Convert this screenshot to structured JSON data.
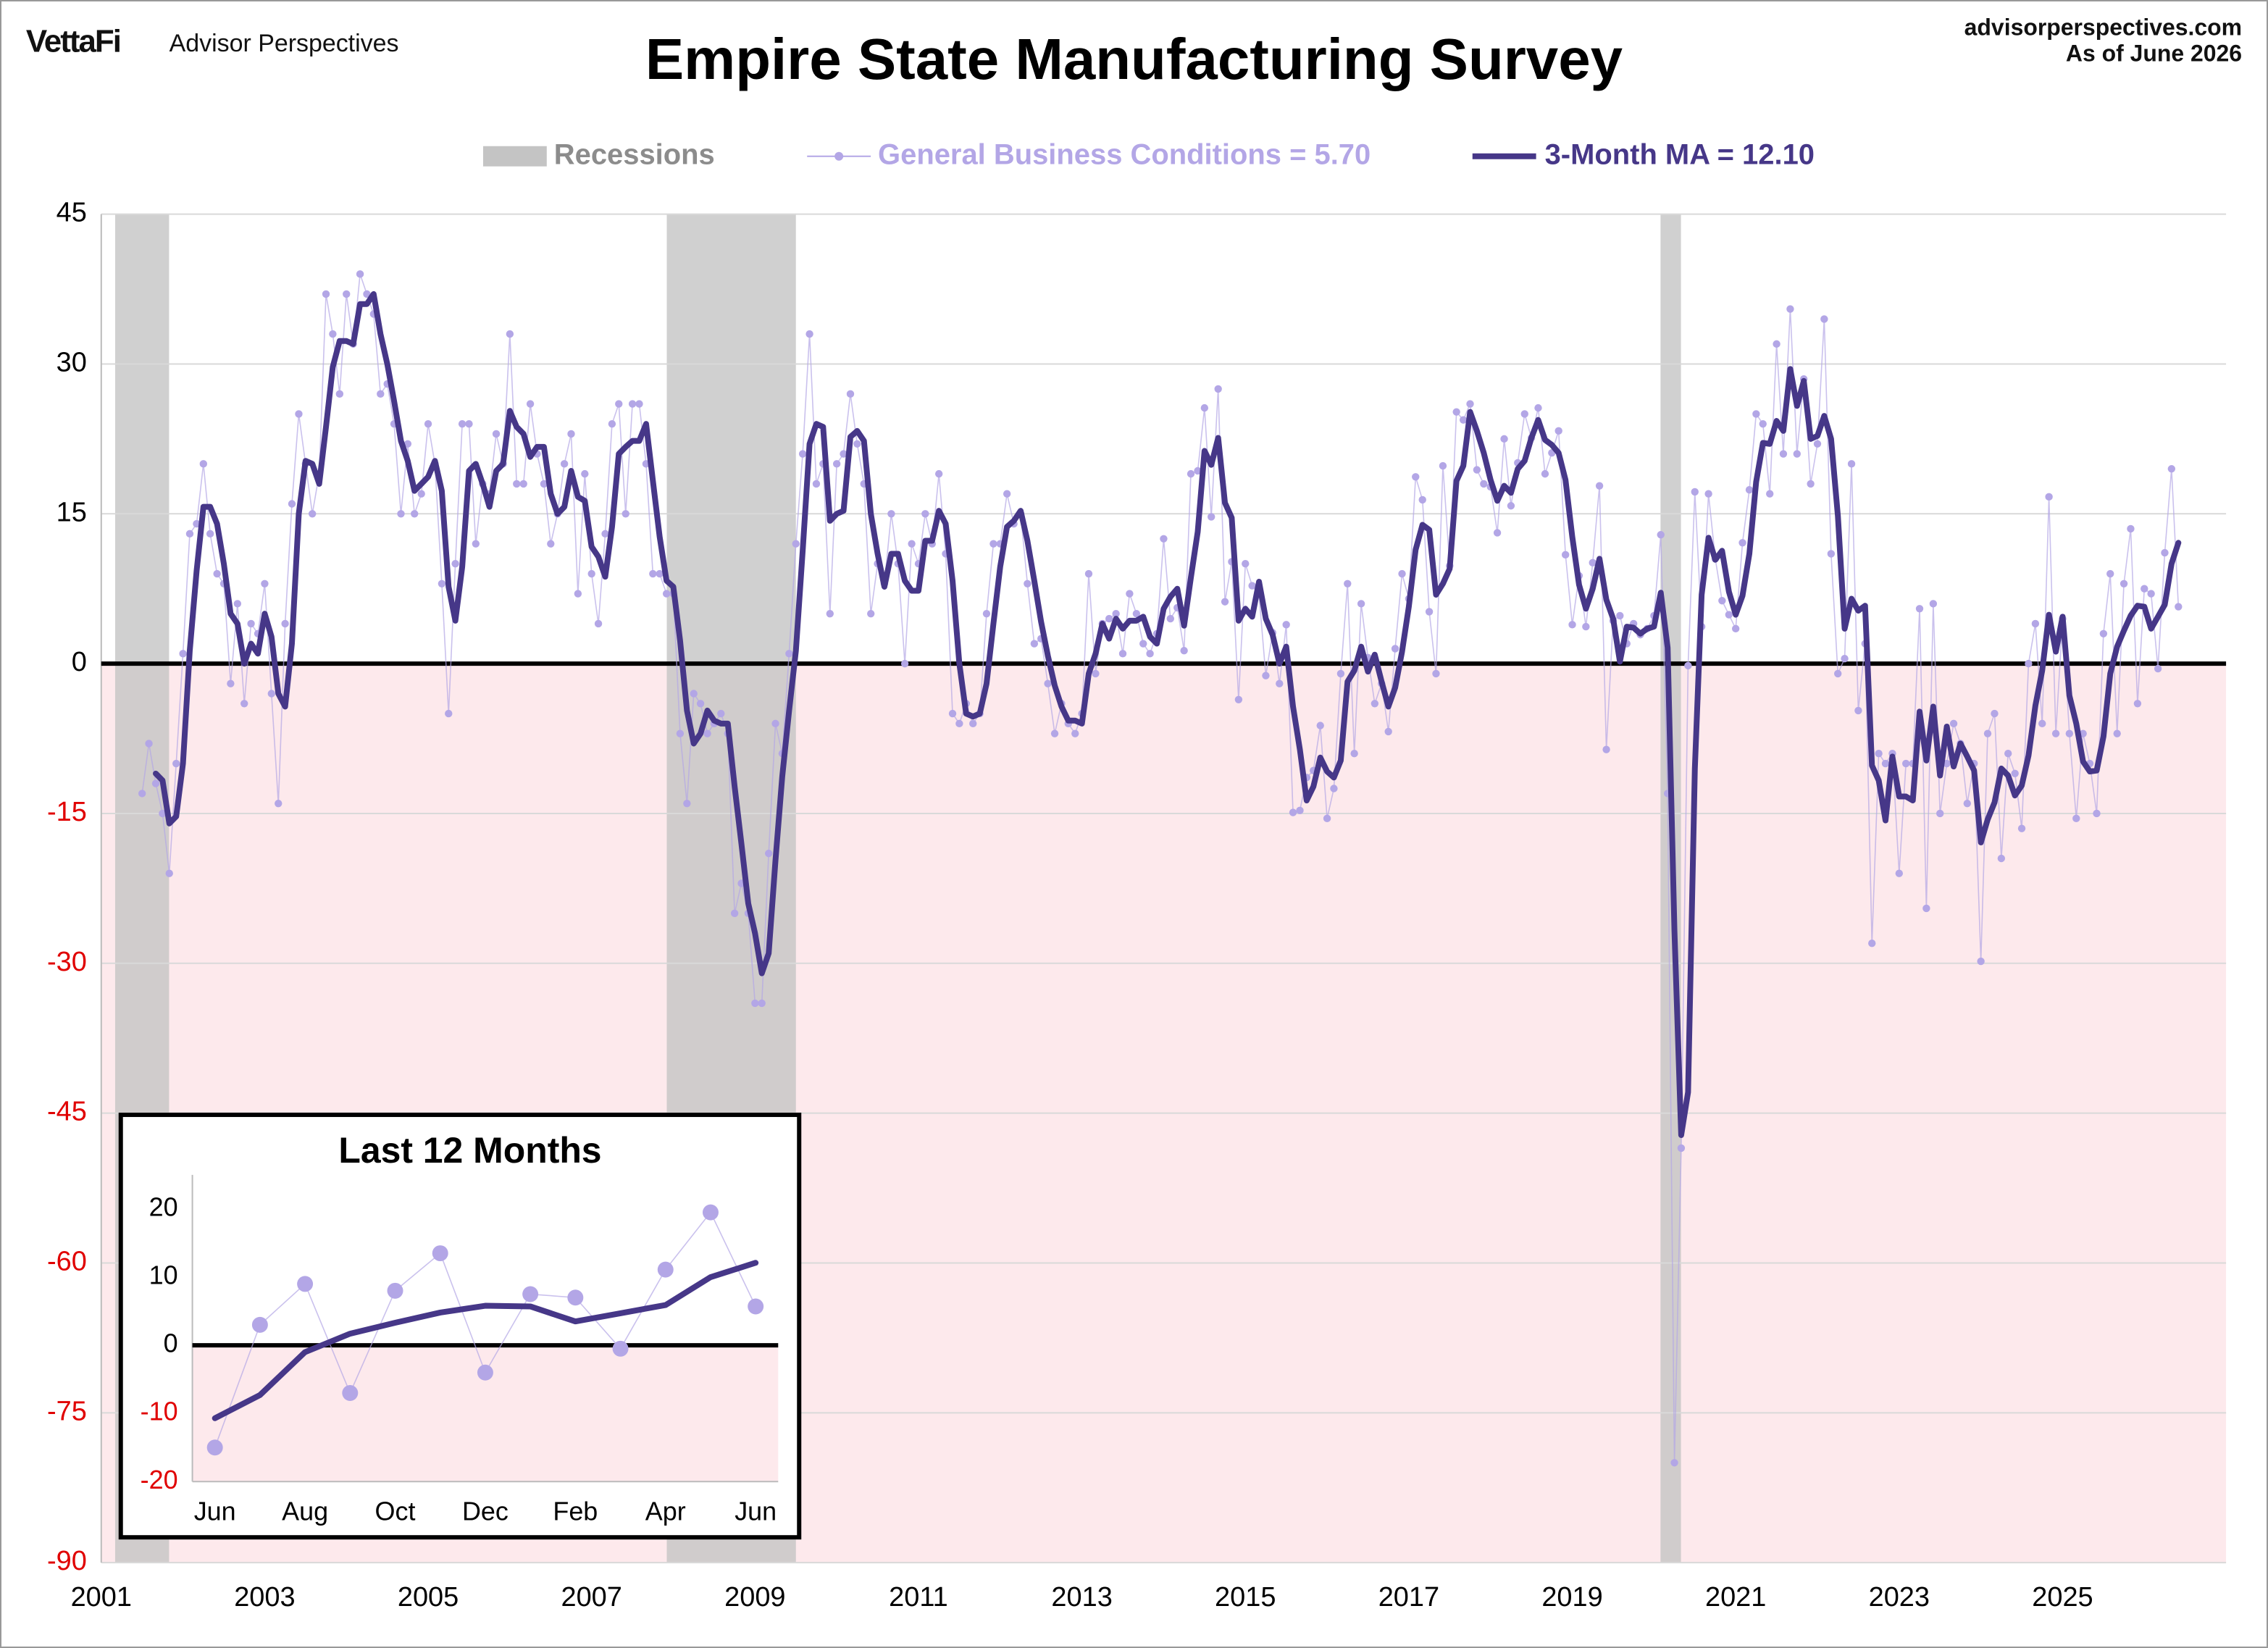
{
  "header": {
    "brand": "VettaFi",
    "brand_sub": "Advisor Perspectives",
    "site": "advisorperspectives.com",
    "date": "As of June 2026"
  },
  "chart_data": [
    {
      "type": "line",
      "title": "Empire State Manufacturing Survey",
      "legend": "top",
      "grid": true,
      "zero_line": true,
      "negative_fill": "#fde9ec",
      "negative_tick_color": "#e00000",
      "xlim": [
        2001,
        2027
      ],
      "xticks": [
        2001,
        2003,
        2005,
        2007,
        2009,
        2011,
        2013,
        2015,
        2017,
        2019,
        2021,
        2023,
        2025
      ],
      "ylim": [
        -90,
        45
      ],
      "yticks": [
        -90,
        -75,
        -60,
        -45,
        -30,
        -15,
        0,
        15,
        30,
        45
      ],
      "recessions": {
        "name": "Recessions",
        "color": "#c4c4c4",
        "periods": [
          [
            2001.17,
            2001.83
          ],
          [
            2007.92,
            2009.5
          ],
          [
            2020.08,
            2020.33
          ]
        ]
      },
      "x": [
        2001.5,
        2001.583,
        2001.667,
        2001.75,
        2001.833,
        2001.917,
        2002,
        2002.083,
        2002.167,
        2002.25,
        2002.333,
        2002.417,
        2002.5,
        2002.583,
        2002.667,
        2002.75,
        2002.833,
        2002.917,
        2003,
        2003.083,
        2003.167,
        2003.25,
        2003.333,
        2003.417,
        2003.5,
        2003.583,
        2003.667,
        2003.75,
        2003.833,
        2003.917,
        2004,
        2004.083,
        2004.167,
        2004.25,
        2004.333,
        2004.417,
        2004.5,
        2004.583,
        2004.667,
        2004.75,
        2004.833,
        2004.917,
        2005,
        2005.083,
        2005.167,
        2005.25,
        2005.333,
        2005.417,
        2005.5,
        2005.583,
        2005.667,
        2005.75,
        2005.833,
        2005.917,
        2006,
        2006.083,
        2006.167,
        2006.25,
        2006.333,
        2006.417,
        2006.5,
        2006.583,
        2006.667,
        2006.75,
        2006.833,
        2006.917,
        2007,
        2007.083,
        2007.167,
        2007.25,
        2007.333,
        2007.417,
        2007.5,
        2007.583,
        2007.667,
        2007.75,
        2007.833,
        2007.917,
        2008,
        2008.083,
        2008.167,
        2008.25,
        2008.333,
        2008.417,
        2008.5,
        2008.583,
        2008.667,
        2008.75,
        2008.833,
        2008.917,
        2009,
        2009.083,
        2009.167,
        2009.25,
        2009.333,
        2009.417,
        2009.5,
        2009.583,
        2009.667,
        2009.75,
        2009.833,
        2009.917,
        2010,
        2010.083,
        2010.167,
        2010.25,
        2010.333,
        2010.417,
        2010.5,
        2010.583,
        2010.667,
        2010.75,
        2010.833,
        2010.917,
        2011,
        2011.083,
        2011.167,
        2011.25,
        2011.333,
        2011.417,
        2011.5,
        2011.583,
        2011.667,
        2011.75,
        2011.833,
        2011.917,
        2012,
        2012.083,
        2012.167,
        2012.25,
        2012.333,
        2012.417,
        2012.5,
        2012.583,
        2012.667,
        2012.75,
        2012.833,
        2012.917,
        2013,
        2013.083,
        2013.167,
        2013.25,
        2013.333,
        2013.417,
        2013.5,
        2013.583,
        2013.667,
        2013.75,
        2013.833,
        2013.917,
        2014,
        2014.083,
        2014.167,
        2014.25,
        2014.333,
        2014.417,
        2014.5,
        2014.583,
        2014.667,
        2014.75,
        2014.833,
        2014.917,
        2015,
        2015.083,
        2015.167,
        2015.25,
        2015.333,
        2015.417,
        2015.5,
        2015.583,
        2015.667,
        2015.75,
        2015.833,
        2015.917,
        2016,
        2016.083,
        2016.167,
        2016.25,
        2016.333,
        2016.417,
        2016.5,
        2016.583,
        2016.667,
        2016.75,
        2016.833,
        2016.917,
        2017,
        2017.083,
        2017.167,
        2017.25,
        2017.333,
        2017.417,
        2017.5,
        2017.583,
        2017.667,
        2017.75,
        2017.833,
        2017.917,
        2018,
        2018.083,
        2018.167,
        2018.25,
        2018.333,
        2018.417,
        2018.5,
        2018.583,
        2018.667,
        2018.75,
        2018.833,
        2018.917,
        2019,
        2019.083,
        2019.167,
        2019.25,
        2019.333,
        2019.417,
        2019.5,
        2019.583,
        2019.667,
        2019.75,
        2019.833,
        2019.917,
        2020,
        2020.083,
        2020.167,
        2020.25,
        2020.333,
        2020.417,
        2020.5,
        2020.583,
        2020.667,
        2020.75,
        2020.833,
        2020.917,
        2021,
        2021.083,
        2021.167,
        2021.25,
        2021.333,
        2021.417,
        2021.5,
        2021.583,
        2021.667,
        2021.75,
        2021.833,
        2021.917,
        2022,
        2022.083,
        2022.167,
        2022.25,
        2022.333,
        2022.417,
        2022.5,
        2022.583,
        2022.667,
        2022.75,
        2022.833,
        2022.917,
        2023,
        2023.083,
        2023.167,
        2023.25,
        2023.333,
        2023.417,
        2023.5,
        2023.583,
        2023.667,
        2023.75,
        2023.833,
        2023.917,
        2024,
        2024.083,
        2024.167,
        2024.25,
        2024.333,
        2024.417,
        2024.5,
        2024.583,
        2024.667,
        2024.75,
        2024.833,
        2024.917,
        2025,
        2025.083,
        2025.167,
        2025.25,
        2025.333,
        2025.417,
        2025.5,
        2025.583,
        2025.667,
        2025.75,
        2025.833,
        2025.917,
        2026,
        2026.083,
        2026.167,
        2026.25,
        2026.333,
        2026.417
      ],
      "series": [
        {
          "name": "General Business Conditions = 5.70",
          "color": "#b3a6e6",
          "markers": true,
          "values": [
            -13,
            -8,
            -12,
            -15,
            -21,
            -10,
            1,
            13,
            14,
            20,
            13,
            9,
            8,
            -2,
            6,
            -4,
            4,
            3,
            8,
            -3,
            -14,
            4,
            16,
            25,
            20,
            15,
            19,
            37,
            33,
            27,
            37,
            32,
            39,
            37,
            35,
            27,
            28,
            24,
            15,
            22,
            15,
            17,
            24,
            20,
            8,
            -5,
            10,
            24,
            24,
            12,
            18,
            17,
            23,
            20,
            33,
            18,
            18,
            26,
            21,
            18,
            12,
            15,
            20,
            23,
            7,
            19,
            9,
            4,
            13,
            24,
            26,
            15,
            26,
            26,
            20,
            9,
            9,
            7,
            7,
            -7,
            -14,
            -3,
            -4,
            -7,
            -6,
            -5,
            -7,
            -25,
            -22,
            -25,
            -34,
            -34,
            -19,
            -6,
            -9,
            1,
            12,
            21,
            33,
            18,
            20,
            5,
            20,
            21,
            27,
            22,
            18,
            5,
            10,
            8,
            15,
            10,
            0,
            12,
            10,
            15,
            12,
            19,
            11,
            -5,
            -6,
            -4,
            -6,
            -5,
            5,
            12,
            12,
            17,
            14,
            15,
            8,
            2,
            2.5,
            -2,
            -7,
            -4,
            -6,
            -7,
            -5,
            9,
            -1,
            4,
            4.5,
            5,
            1,
            7,
            5,
            2,
            1,
            3,
            12.5,
            4.5,
            5.6,
            1.3,
            19,
            19.3,
            25.6,
            14.7,
            27.5,
            6.2,
            10.2,
            -3.6,
            10,
            7.8,
            6.9,
            -1.2,
            3.1,
            -2,
            3.9,
            -14.9,
            -14.7,
            -11.4,
            -10.7,
            -6.2,
            -15.5,
            -12.5,
            -1,
            8,
            -9,
            6,
            0.6,
            -4,
            -2,
            -6.8,
            1.5,
            9,
            6.5,
            18.7,
            16.4,
            5.2,
            -1,
            19.8,
            9.8,
            25.2,
            24.4,
            26,
            19.4,
            18,
            17.7,
            13.1,
            22.5,
            15.8,
            20.1,
            25,
            22.6,
            25.6,
            19,
            21.1,
            23.3,
            10.9,
            3.9,
            8.8,
            3.7,
            10.1,
            17.8,
            -8.6,
            4.3,
            4.8,
            2,
            4,
            2.9,
            3.5,
            4.8,
            12.9,
            -13,
            -80,
            -48.5,
            -0.2,
            17.2,
            3.7,
            17,
            10.5,
            6.3,
            4.9,
            3.5,
            12.1,
            17.4,
            25,
            24,
            17,
            32,
            21,
            35.5,
            21,
            28.5,
            18,
            22,
            34.5,
            11,
            -1,
            0.5,
            20,
            -4.7,
            2,
            -28,
            -9,
            -10,
            -9,
            -21,
            -10,
            -10,
            5.5,
            -24.5,
            6,
            -15,
            -10,
            -6,
            -8,
            -14,
            -10,
            -29.8,
            -7,
            -5,
            -19.5,
            -9,
            -11,
            -16.5,
            0,
            4,
            -6,
            16.7,
            -7,
            4.5,
            -7,
            -15.5,
            -7,
            -10,
            -15,
            3,
            9,
            -7,
            8,
            13.5,
            -4,
            7.5,
            7,
            -0.5,
            11.1,
            19.5,
            5.7
          ]
        },
        {
          "name": "3-Month MA = 12.10",
          "color": "#463788",
          "markers": false,
          "values": [
            null,
            null,
            -11,
            -11.7,
            -16,
            -15.3,
            -10,
            1.3,
            9.3,
            15.7,
            15.7,
            14,
            10,
            5,
            4,
            0,
            2,
            1,
            5,
            2.7,
            -3,
            -4.3,
            2,
            15,
            20.3,
            20,
            18,
            23.7,
            29.7,
            32.3,
            32.3,
            32,
            36,
            36,
            37,
            33,
            30,
            26.3,
            22.3,
            20.3,
            17.3,
            18,
            18.7,
            20.3,
            17.3,
            7.7,
            4.3,
            9.7,
            19.3,
            20,
            18,
            15.7,
            19.3,
            20,
            25.3,
            23.7,
            23,
            20.7,
            21.7,
            21.7,
            17,
            15,
            15.7,
            19.3,
            16.7,
            16.3,
            11.7,
            10.7,
            8.7,
            13.7,
            21,
            21.7,
            22.3,
            22.3,
            24,
            18.3,
            12.7,
            8.3,
            7.7,
            2.3,
            -4.7,
            -8,
            -7,
            -4.7,
            -5.7,
            -6,
            -6,
            -12.3,
            -18,
            -24,
            -27,
            -31,
            -29,
            -19.7,
            -11.3,
            -4.7,
            1.3,
            11.3,
            22,
            24,
            23.7,
            14.3,
            15,
            15.3,
            22.7,
            23.3,
            22.3,
            15,
            11,
            7.7,
            11,
            11,
            8.3,
            7.3,
            7.3,
            12.3,
            12.3,
            15.3,
            14,
            8.3,
            0,
            -5,
            -5.3,
            -5,
            -2,
            4,
            9.7,
            13.7,
            14.3,
            15.3,
            12.3,
            8.3,
            4.2,
            0.8,
            -2.2,
            -4.3,
            -5.7,
            -5.7,
            -6,
            -1,
            1,
            4,
            2.5,
            4.5,
            3.5,
            4.3,
            4.3,
            4.7,
            2.7,
            2,
            5.5,
            6.7,
            7.5,
            3.8,
            8.6,
            13.2,
            21.3,
            19.9,
            22.6,
            16.1,
            14.6,
            4.3,
            5.5,
            4.7,
            8.2,
            4.5,
            2.9,
            0,
            1.7,
            -4.3,
            -8.6,
            -13.7,
            -12.3,
            -9.4,
            -10.8,
            -11.4,
            -9.7,
            -1.8,
            -0.7,
            1.7,
            -0.8,
            0.9,
            -1.8,
            -4.3,
            -2.4,
            1.2,
            5.7,
            11.4,
            13.9,
            13.4,
            6.9,
            8,
            9.5,
            18.3,
            19.8,
            25.2,
            23.3,
            21.1,
            18.4,
            16.3,
            17.8,
            17.1,
            19.5,
            20.3,
            22.6,
            24.4,
            22.4,
            21.9,
            21.1,
            18.4,
            12.7,
            7.9,
            5.5,
            7.5,
            10.5,
            6.4,
            4.5,
            0.2,
            3.7,
            3.6,
            3,
            3.5,
            3.7,
            7.1,
            1.6,
            -26.7,
            -47.2,
            -42.9,
            -10.5,
            6.9,
            12.6,
            10.4,
            11.3,
            7.2,
            4.9,
            6.8,
            11,
            18.2,
            22.1,
            22,
            24.3,
            23.3,
            29.5,
            25.8,
            28.3,
            22.5,
            22.8,
            24.8,
            22.5,
            14.8,
            3.5,
            6.5,
            5.3,
            5.8,
            -10.2,
            -11.7,
            -15.7,
            -9.3,
            -13.3,
            -13.3,
            -13.7,
            -4.8,
            -9.7,
            -4.3,
            -11.2,
            -6.3,
            -10.3,
            -8,
            -9.3,
            -10.7,
            -17.9,
            -15.6,
            -13.9,
            -10.5,
            -11.2,
            -13.2,
            -12.2,
            -9.2,
            -4.2,
            -0.7,
            4.9,
            1.2,
            4.7,
            -3.2,
            -6,
            -9.8,
            -10.8,
            -10.7,
            -7.3,
            -1,
            1.7,
            3.3,
            4.8,
            5.8,
            5.7,
            3.5,
            4.7,
            5.9,
            10,
            12.1
          ]
        }
      ]
    },
    {
      "type": "line",
      "title": "Last 12 Months",
      "grid": false,
      "zero_line": true,
      "negative_fill": "#fde9ec",
      "negative_tick_color": "#e00000",
      "categories": [
        "Jun",
        null,
        "Aug",
        null,
        "Oct",
        null,
        "Dec",
        null,
        "Feb",
        null,
        "Apr",
        null,
        "Jun"
      ],
      "ylim": [
        -20,
        25
      ],
      "yticks": [
        -20,
        -10,
        0,
        10,
        20
      ],
      "series": [
        {
          "name": "General Business Conditions = 5.70",
          "color": "#b3a6e6",
          "markers": true,
          "values": [
            -15,
            3,
            9,
            -7,
            8,
            13.5,
            -4,
            7.5,
            7,
            -0.5,
            11.1,
            19.5,
            5.7
          ]
        },
        {
          "name": "3-Month MA = 12.10",
          "color": "#463788",
          "markers": false,
          "values": [
            -10.7,
            -7.3,
            -1,
            1.7,
            3.3,
            4.8,
            5.8,
            5.7,
            3.5,
            4.7,
            5.9,
            10,
            12.1
          ]
        }
      ]
    }
  ]
}
